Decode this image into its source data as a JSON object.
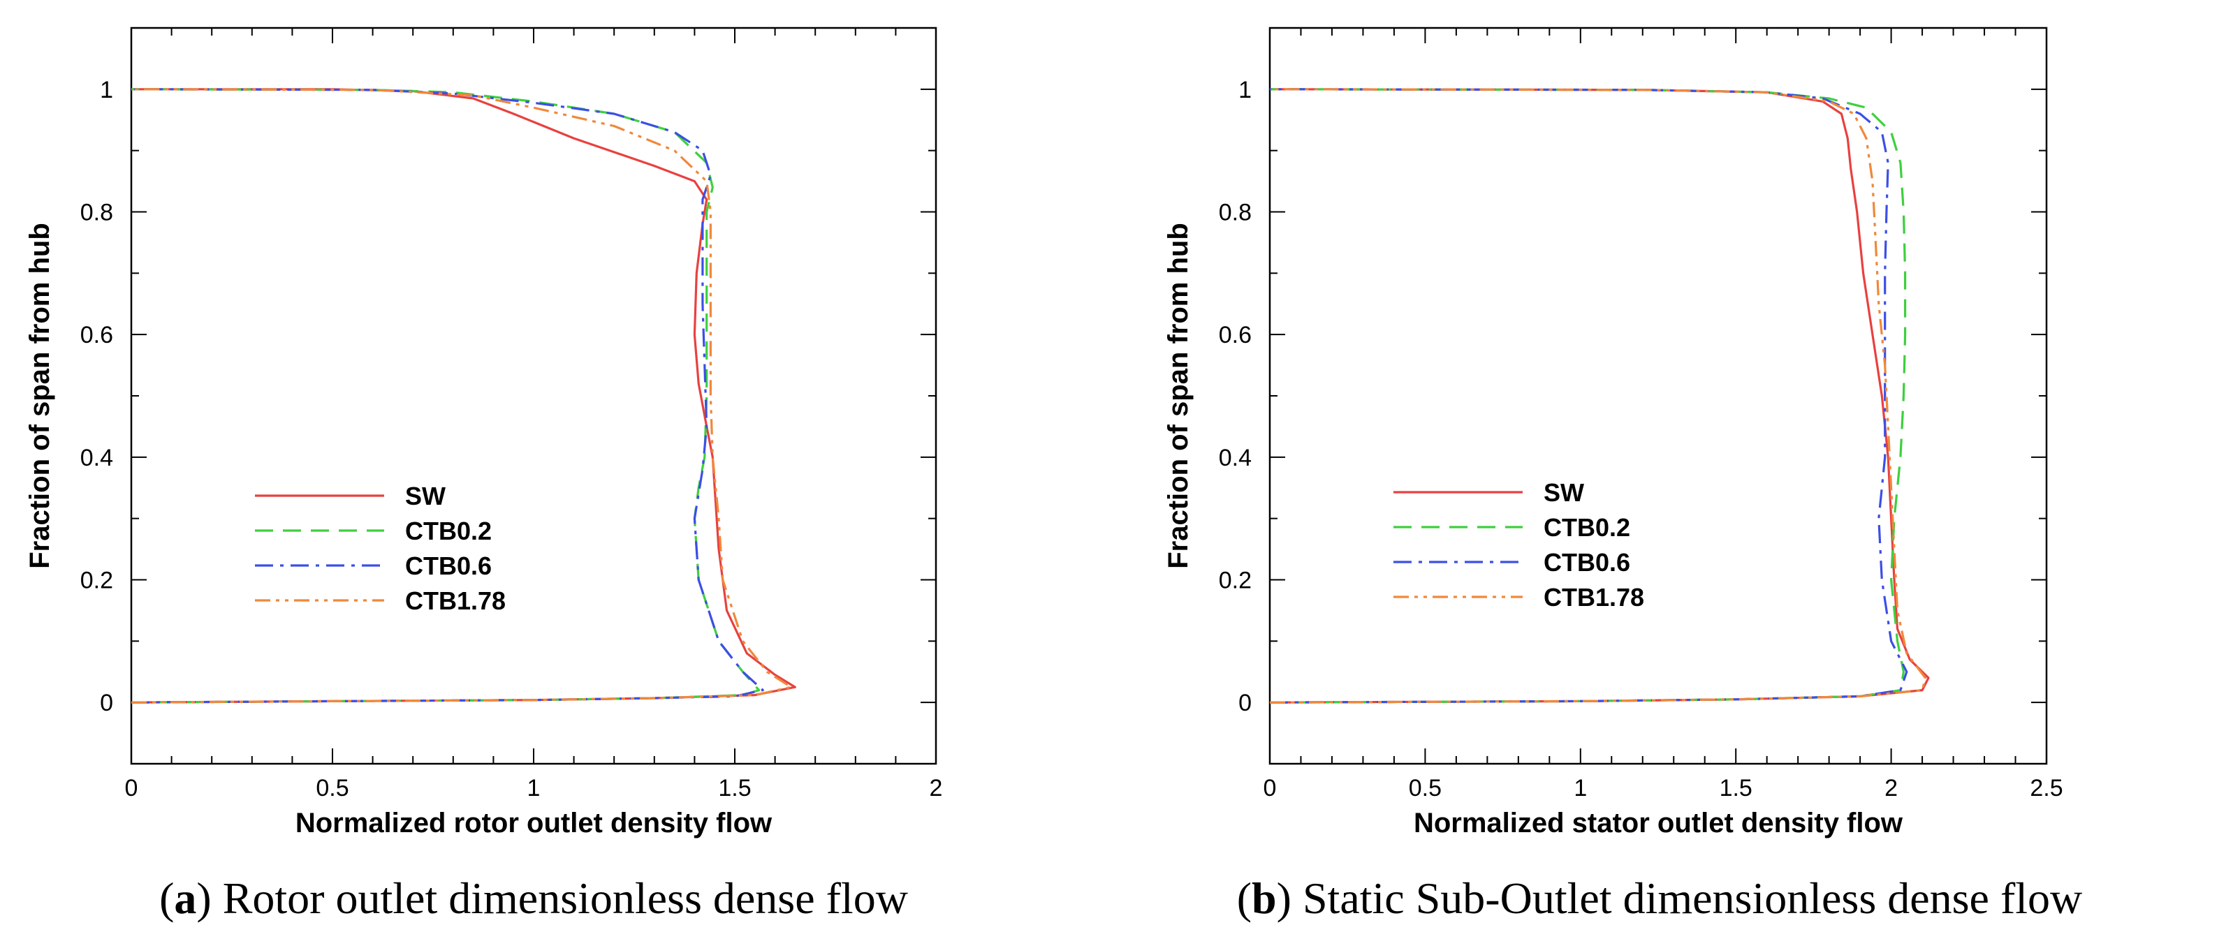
{
  "chart_data": [
    {
      "type": "line",
      "caption_letter": "a",
      "caption_text": "Rotor outlet dimensionless dense flow",
      "xlabel": "Normalized rotor outlet density flow",
      "ylabel": "Fraction of span from hub",
      "xlim": [
        0,
        2
      ],
      "ylim": [
        -0.1,
        1.1
      ],
      "xticks": [
        "0",
        "0.5",
        "1",
        "1.5",
        "2"
      ],
      "yticks": [
        "0",
        "0.2",
        "0.4",
        "0.6",
        "0.8",
        "1"
      ],
      "legend_position": "center-left",
      "series": [
        {
          "name": "SW",
          "color": "#e8413f",
          "dash": "solid",
          "points": [
            [
              0,
              0
            ],
            [
              0.5,
              0.002
            ],
            [
              1.0,
              0.004
            ],
            [
              1.3,
              0.007
            ],
            [
              1.55,
              0.012
            ],
            [
              1.65,
              0.025
            ],
            [
              1.6,
              0.045
            ],
            [
              1.53,
              0.08
            ],
            [
              1.48,
              0.15
            ],
            [
              1.46,
              0.25
            ],
            [
              1.445,
              0.4
            ],
            [
              1.43,
              0.45
            ],
            [
              1.41,
              0.52
            ],
            [
              1.4,
              0.6
            ],
            [
              1.405,
              0.7
            ],
            [
              1.42,
              0.78
            ],
            [
              1.43,
              0.82
            ],
            [
              1.4,
              0.85
            ],
            [
              1.3,
              0.875
            ],
            [
              1.1,
              0.92
            ],
            [
              0.95,
              0.96
            ],
            [
              0.85,
              0.985
            ],
            [
              0.7,
              0.997
            ],
            [
              0.5,
              1.0
            ],
            [
              0,
              1.0
            ]
          ]
        },
        {
          "name": "CTB0.2",
          "color": "#3ecf3e",
          "dash": "dashed",
          "points": [
            [
              0,
              0
            ],
            [
              0.5,
              0.002
            ],
            [
              1.0,
              0.004
            ],
            [
              1.3,
              0.007
            ],
            [
              1.52,
              0.012
            ],
            [
              1.56,
              0.02
            ],
            [
              1.52,
              0.05
            ],
            [
              1.46,
              0.1
            ],
            [
              1.41,
              0.2
            ],
            [
              1.4,
              0.3
            ],
            [
              1.41,
              0.35
            ],
            [
              1.425,
              0.4
            ],
            [
              1.43,
              0.5
            ],
            [
              1.43,
              0.6
            ],
            [
              1.43,
              0.7
            ],
            [
              1.43,
              0.8
            ],
            [
              1.445,
              0.84
            ],
            [
              1.43,
              0.88
            ],
            [
              1.35,
              0.93
            ],
            [
              1.2,
              0.96
            ],
            [
              1.0,
              0.98
            ],
            [
              0.8,
              0.995
            ],
            [
              0.6,
              0.999
            ],
            [
              0,
              1.0
            ]
          ]
        },
        {
          "name": "CTB0.6",
          "color": "#3b4fe6",
          "dash": "dashdot",
          "points": [
            [
              0,
              0
            ],
            [
              0.5,
              0.002
            ],
            [
              1.0,
              0.004
            ],
            [
              1.3,
              0.007
            ],
            [
              1.5,
              0.01
            ],
            [
              1.57,
              0.02
            ],
            [
              1.52,
              0.05
            ],
            [
              1.46,
              0.1
            ],
            [
              1.41,
              0.2
            ],
            [
              1.4,
              0.3
            ],
            [
              1.42,
              0.38
            ],
            [
              1.43,
              0.45
            ],
            [
              1.425,
              0.55
            ],
            [
              1.42,
              0.65
            ],
            [
              1.42,
              0.75
            ],
            [
              1.42,
              0.82
            ],
            [
              1.44,
              0.86
            ],
            [
              1.42,
              0.9
            ],
            [
              1.35,
              0.93
            ],
            [
              1.2,
              0.96
            ],
            [
              1.0,
              0.978
            ],
            [
              0.8,
              0.993
            ],
            [
              0.6,
              0.999
            ],
            [
              0,
              1.0
            ]
          ]
        },
        {
          "name": "CTB1.78",
          "color": "#f0883a",
          "dash": "dashdotdot",
          "points": [
            [
              0,
              0
            ],
            [
              0.5,
              0.002
            ],
            [
              1.0,
              0.004
            ],
            [
              1.3,
              0.007
            ],
            [
              1.55,
              0.012
            ],
            [
              1.64,
              0.025
            ],
            [
              1.58,
              0.05
            ],
            [
              1.52,
              0.1
            ],
            [
              1.47,
              0.2
            ],
            [
              1.46,
              0.3
            ],
            [
              1.445,
              0.4
            ],
            [
              1.44,
              0.5
            ],
            [
              1.44,
              0.6
            ],
            [
              1.44,
              0.7
            ],
            [
              1.44,
              0.8
            ],
            [
              1.43,
              0.85
            ],
            [
              1.35,
              0.9
            ],
            [
              1.2,
              0.94
            ],
            [
              1.0,
              0.97
            ],
            [
              0.85,
              0.99
            ],
            [
              0.6,
              0.999
            ],
            [
              0,
              1.0
            ]
          ]
        }
      ]
    },
    {
      "type": "line",
      "caption_letter": "b",
      "caption_text": "Static Sub-Outlet dimensionless dense flow",
      "xlabel": "Normalized stator outlet density flow",
      "ylabel": "Fraction of span from hub",
      "xlim": [
        0,
        2.5
      ],
      "ylim": [
        -0.1,
        1.1
      ],
      "xticks": [
        "0",
        "0.5",
        "1",
        "1.5",
        "2",
        "2.5"
      ],
      "yticks": [
        "0",
        "0.2",
        "0.4",
        "0.6",
        "0.8",
        "1"
      ],
      "legend_position": "center-left",
      "series": [
        {
          "name": "SW",
          "color": "#e8413f",
          "dash": "solid",
          "points": [
            [
              0,
              0
            ],
            [
              0.5,
              0.001
            ],
            [
              1.0,
              0.002
            ],
            [
              1.5,
              0.005
            ],
            [
              1.9,
              0.01
            ],
            [
              2.1,
              0.02
            ],
            [
              2.12,
              0.04
            ],
            [
              2.06,
              0.07
            ],
            [
              2.02,
              0.12
            ],
            [
              2.01,
              0.2
            ],
            [
              2.0,
              0.3
            ],
            [
              1.99,
              0.4
            ],
            [
              1.97,
              0.5
            ],
            [
              1.94,
              0.6
            ],
            [
              1.91,
              0.7
            ],
            [
              1.89,
              0.8
            ],
            [
              1.87,
              0.87
            ],
            [
              1.86,
              0.92
            ],
            [
              1.84,
              0.96
            ],
            [
              1.78,
              0.98
            ],
            [
              1.6,
              0.995
            ],
            [
              1.2,
              0.999
            ],
            [
              0,
              1.0
            ]
          ]
        },
        {
          "name": "CTB0.2",
          "color": "#3ecf3e",
          "dash": "dashed",
          "points": [
            [
              0,
              0
            ],
            [
              0.5,
              0.001
            ],
            [
              1.0,
              0.002
            ],
            [
              1.5,
              0.005
            ],
            [
              1.9,
              0.01
            ],
            [
              2.03,
              0.02
            ],
            [
              2.04,
              0.05
            ],
            [
              2.02,
              0.1
            ],
            [
              2.0,
              0.2
            ],
            [
              2.01,
              0.3
            ],
            [
              2.03,
              0.4
            ],
            [
              2.04,
              0.5
            ],
            [
              2.045,
              0.6
            ],
            [
              2.045,
              0.7
            ],
            [
              2.04,
              0.8
            ],
            [
              2.03,
              0.88
            ],
            [
              2.0,
              0.93
            ],
            [
              1.92,
              0.97
            ],
            [
              1.8,
              0.985
            ],
            [
              1.6,
              0.995
            ],
            [
              1.2,
              0.999
            ],
            [
              0,
              1.0
            ]
          ]
        },
        {
          "name": "CTB0.6",
          "color": "#3b4fe6",
          "dash": "dashdot",
          "points": [
            [
              0,
              0
            ],
            [
              0.5,
              0.001
            ],
            [
              1.0,
              0.002
            ],
            [
              1.5,
              0.005
            ],
            [
              1.9,
              0.01
            ],
            [
              2.03,
              0.02
            ],
            [
              2.05,
              0.05
            ],
            [
              2.0,
              0.1
            ],
            [
              1.97,
              0.2
            ],
            [
              1.96,
              0.3
            ],
            [
              1.97,
              0.35
            ],
            [
              1.98,
              0.4
            ],
            [
              1.98,
              0.5
            ],
            [
              1.98,
              0.6
            ],
            [
              1.98,
              0.7
            ],
            [
              1.985,
              0.8
            ],
            [
              1.99,
              0.88
            ],
            [
              1.97,
              0.93
            ],
            [
              1.9,
              0.96
            ],
            [
              1.78,
              0.985
            ],
            [
              1.6,
              0.995
            ],
            [
              1.2,
              0.999
            ],
            [
              0,
              1.0
            ]
          ]
        },
        {
          "name": "CTB1.78",
          "color": "#f0883a",
          "dash": "dashdotdot",
          "points": [
            [
              0,
              0
            ],
            [
              0.5,
              0.001
            ],
            [
              1.0,
              0.002
            ],
            [
              1.5,
              0.005
            ],
            [
              1.9,
              0.01
            ],
            [
              2.1,
              0.02
            ],
            [
              2.11,
              0.04
            ],
            [
              2.05,
              0.08
            ],
            [
              2.02,
              0.15
            ],
            [
              2.01,
              0.25
            ],
            [
              2.0,
              0.35
            ],
            [
              1.99,
              0.45
            ],
            [
              1.98,
              0.55
            ],
            [
              1.96,
              0.65
            ],
            [
              1.95,
              0.75
            ],
            [
              1.94,
              0.85
            ],
            [
              1.92,
              0.92
            ],
            [
              1.88,
              0.96
            ],
            [
              1.8,
              0.98
            ],
            [
              1.6,
              0.995
            ],
            [
              1.2,
              0.999
            ],
            [
              0,
              1.0
            ]
          ]
        }
      ]
    }
  ]
}
